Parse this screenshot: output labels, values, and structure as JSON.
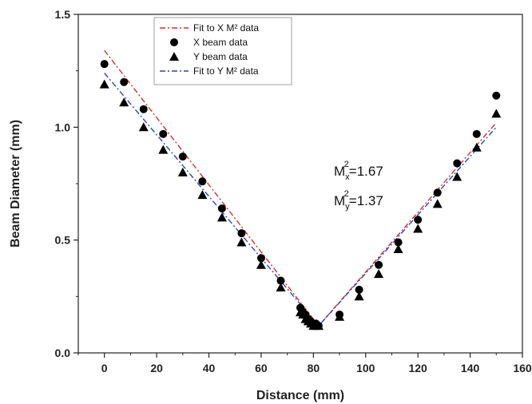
{
  "chart_data": {
    "type": "scatter",
    "xlabel": "Distance (mm)",
    "ylabel": "Beam Diameter (mm)",
    "xlim": [
      -10,
      160
    ],
    "ylim": [
      0,
      1.5
    ],
    "xticks": [
      0,
      20,
      40,
      60,
      80,
      100,
      120,
      140,
      160
    ],
    "yticks": [
      0.0,
      0.5,
      1.0,
      1.5
    ],
    "xtick_labels": [
      "0",
      "20",
      "40",
      "60",
      "80",
      "100",
      "120",
      "140",
      "160"
    ],
    "ytick_labels": [
      "0.0",
      "0.5",
      "1.0",
      "1.5"
    ],
    "grid": false,
    "legend_position": "top-left",
    "series": [
      {
        "name": "Fit to X M² data",
        "kind": "fit",
        "color": "#cc3333",
        "dash": "dash-dot",
        "x": [
          0,
          82,
          150
        ],
        "y": [
          1.34,
          0.12,
          1.02
        ]
      },
      {
        "name": "X beam data",
        "kind": "points",
        "marker": "circle",
        "color": "#000000",
        "x": [
          0,
          7.5,
          15,
          22.5,
          30,
          37.5,
          45,
          52.5,
          60,
          67.5,
          75,
          76,
          77,
          78,
          79,
          80,
          81,
          82,
          90,
          97.5,
          105,
          112.5,
          120,
          127.5,
          135,
          142.5,
          150
        ],
        "y": [
          1.28,
          1.2,
          1.08,
          0.97,
          0.87,
          0.76,
          0.64,
          0.53,
          0.42,
          0.32,
          0.2,
          0.18,
          0.17,
          0.15,
          0.14,
          0.13,
          0.13,
          0.12,
          0.17,
          0.28,
          0.39,
          0.49,
          0.59,
          0.71,
          0.84,
          0.97,
          1.14
        ]
      },
      {
        "name": "Y beam data",
        "kind": "points",
        "marker": "triangle",
        "color": "#000000",
        "x": [
          0,
          7.5,
          15,
          22.5,
          30,
          37.5,
          45,
          52.5,
          60,
          67.5,
          75,
          76,
          77,
          78,
          79,
          80,
          81,
          82,
          90,
          97.5,
          105,
          112.5,
          120,
          127.5,
          135,
          142.5,
          150
        ],
        "y": [
          1.19,
          1.11,
          1.0,
          0.9,
          0.8,
          0.7,
          0.6,
          0.49,
          0.39,
          0.29,
          0.18,
          0.17,
          0.15,
          0.14,
          0.13,
          0.12,
          0.12,
          0.12,
          0.16,
          0.25,
          0.35,
          0.46,
          0.55,
          0.66,
          0.78,
          0.91,
          1.06
        ]
      },
      {
        "name": "Fit to Y M² data",
        "kind": "fit",
        "color": "#3344aa",
        "dash": "dash-dot",
        "x": [
          0,
          82,
          150
        ],
        "y": [
          1.24,
          0.12,
          1.0
        ]
      }
    ],
    "annotations": [
      {
        "base": "M",
        "sub": "x",
        "sup": "2",
        "value": "=1.67"
      },
      {
        "base": "M",
        "sub": "y",
        "sup": "2",
        "value": "=1.37"
      }
    ]
  }
}
